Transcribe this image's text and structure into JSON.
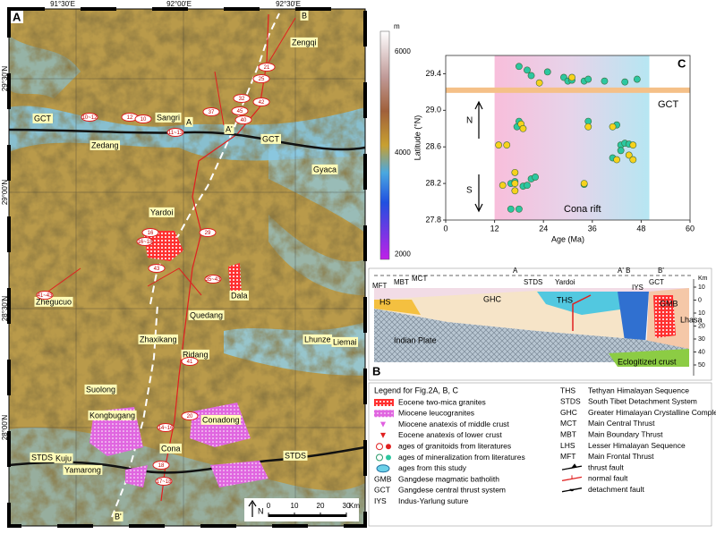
{
  "panel_labels": [
    "A",
    "B",
    "C"
  ],
  "map": {
    "lon_labels": [
      "91°30'E",
      "92°00'E",
      "92°30'E"
    ],
    "lat_labels": [
      "29°30'N",
      "29°00'N",
      "28°30'N",
      "28°00'N"
    ],
    "places": [
      "Zengqi",
      "Sangri",
      "Zedang",
      "Gyaca",
      "Yardoi",
      "Zhegucuo",
      "Dala",
      "Quedang",
      "Zhaxikang",
      "Ridang",
      "Lhunze",
      "Liemai",
      "Suolong",
      "Kongbugang",
      "Conadong",
      "Kuju",
      "Cona",
      "Yamarong"
    ],
    "structures": [
      "GCT",
      "GCT",
      "STDS",
      "STDS"
    ],
    "section_ends": [
      "A",
      "A'",
      "B",
      "B'",
      "A'"
    ],
    "ages": [
      "21",
      "25",
      "32",
      "45",
      "40",
      "42",
      "37",
      "10~12",
      "12",
      "10",
      "11~13",
      "16",
      "16~18",
      "29",
      "35~43",
      "43",
      "41~43",
      "41",
      "20",
      "14~16",
      "18",
      "17~18"
    ],
    "colorbar": {
      "unit": "m",
      "range": [
        1900,
        6400
      ],
      "ticks": [
        6000,
        4000,
        2000
      ]
    },
    "scale_bar": {
      "ticks": [
        0,
        10,
        20,
        30
      ],
      "unit": "Km",
      "north": "N"
    }
  },
  "chart_data": {
    "type": "scatter",
    "x_label": "Age (Ma)",
    "y_label": "Latitude (°N)",
    "xlim": [
      0,
      60
    ],
    "xticks": [
      0,
      12,
      24,
      36,
      48,
      60
    ],
    "ylim": [
      27.8,
      29.6
    ],
    "yticks": [
      27.8,
      28.2,
      28.6,
      {
        "value": 29,
        "label": "29.0"
      },
      29.4
    ],
    "shaded_range": [
      12,
      50
    ],
    "reference_line": {
      "y": 29.22,
      "label": "GCT"
    },
    "annotations": [
      "N",
      "S",
      "Cona rift"
    ],
    "series": [
      {
        "color": "#2cc7a0",
        "x": [
          18,
          20,
          21,
          25,
          29,
          30,
          31,
          34,
          35,
          39,
          44,
          47,
          18,
          17.5,
          35,
          42,
          43,
          44,
          45,
          43,
          41,
          16,
          17,
          19,
          20,
          21,
          22,
          34,
          16,
          18
        ],
        "values": [
          29.48,
          29.44,
          29.38,
          29.42,
          29.36,
          29.32,
          29.33,
          29.32,
          29.34,
          29.32,
          29.31,
          29.34,
          28.88,
          28.82,
          28.88,
          28.84,
          28.62,
          28.64,
          28.63,
          28.56,
          28.48,
          28.2,
          28.22,
          28.17,
          28.18,
          28.25,
          28.27,
          28.19,
          27.92,
          27.92
        ]
      },
      {
        "color": "#f7d21c",
        "x": [
          23,
          31,
          18.5,
          19,
          13,
          17,
          35,
          41,
          46,
          45,
          42,
          15,
          17,
          14,
          17,
          34,
          46
        ],
        "values": [
          29.3,
          29.36,
          28.85,
          28.8,
          28.62,
          28.32,
          28.82,
          28.82,
          28.62,
          28.51,
          28.46,
          28.62,
          28.2,
          28.18,
          28.12,
          28.2,
          28.46
        ]
      }
    ]
  },
  "section": {
    "labels": [
      "MFT",
      "MBT",
      "MCT",
      "STDS",
      "Yardoi",
      "IYS",
      "GCT",
      "HS",
      "GHC",
      "THS",
      "GMB",
      "Lhasa",
      "Indian Plate",
      "Eclogitized crust"
    ],
    "ends": [
      "A",
      "A' B",
      "B'"
    ],
    "depth_unit": "Km",
    "depth_ticks": [
      10,
      0,
      10,
      20,
      30,
      40,
      50
    ]
  },
  "legend": {
    "title": "Legend for Fig.2A, B, C",
    "left": [
      "Eocene two-mica granites",
      "Miocene leucogranites",
      "Miocene anatexis of middle crust",
      "Eocene anatexis of lower crust",
      "ages of granitoids from literatures",
      "ages of mineralization from literatures",
      "ages from this study"
    ],
    "left_abbr": [
      {
        "abbr": "GMB",
        "text": "Gangdese magmatic batholith"
      },
      {
        "abbr": "GCT",
        "text": "Gangdese central thrust system"
      },
      {
        "abbr": "IYS",
        "text": "Indus-Yarlung suture"
      }
    ],
    "right_abbr": [
      {
        "abbr": "THS",
        "text": "Tethyan Himalayan Sequence"
      },
      {
        "abbr": "STDS",
        "text": "South Tibet Detachment System"
      },
      {
        "abbr": "GHC",
        "text": "Greater Himalayan Crystalline Complex"
      },
      {
        "abbr": "MCT",
        "text": "Main Central Thrust"
      },
      {
        "abbr": "MBT",
        "text": "Main Boundary Thrust"
      },
      {
        "abbr": "LHS",
        "text": "Lesser Himalayan Sequence"
      },
      {
        "abbr": "MFT",
        "text": "Main Frontal Thrust"
      }
    ],
    "faults": [
      "thrust fault",
      "normal  fault",
      "detachment fault"
    ]
  }
}
